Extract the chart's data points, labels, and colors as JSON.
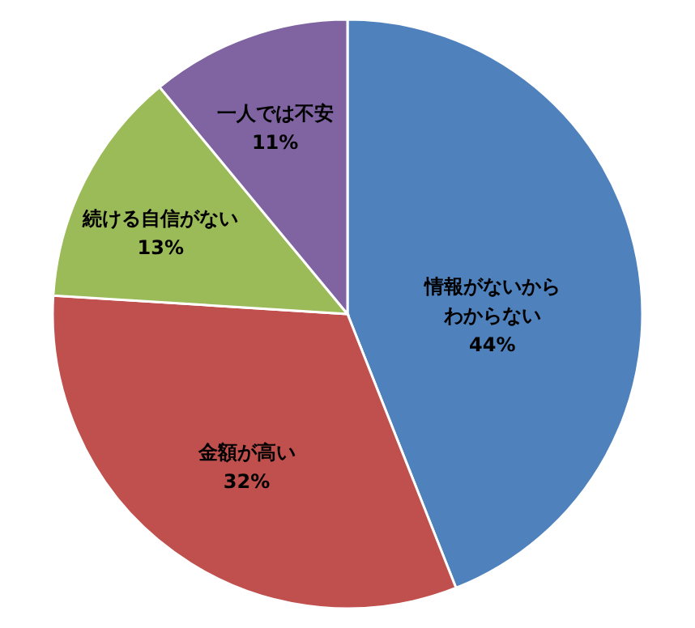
{
  "chart_data": {
    "type": "pie",
    "categories": [
      "情報がないからわからない",
      "金額が高い",
      "続ける自信がない",
      "一人では不安"
    ],
    "values": [
      44,
      32,
      13,
      11
    ],
    "colors": [
      "#4f81bd",
      "#c0504d",
      "#9bbb59",
      "#8064a2"
    ],
    "value_labels": [
      "44%",
      "32%",
      "13%",
      "11%"
    ]
  }
}
